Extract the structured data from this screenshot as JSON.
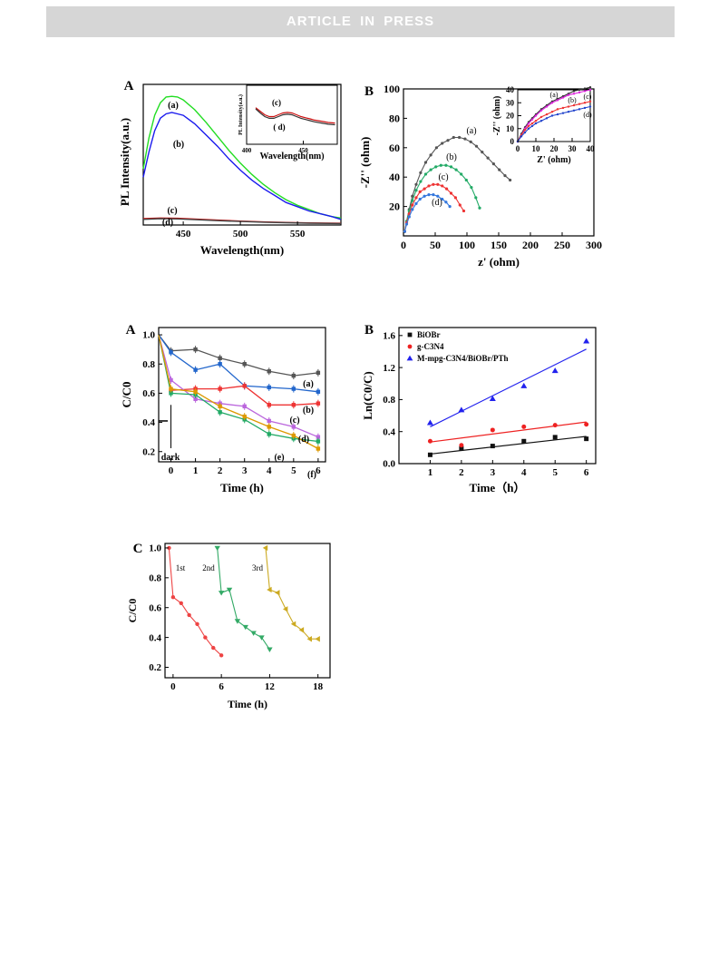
{
  "banner": {
    "text": "ARTICLE IN PRESS"
  },
  "figures": [
    {
      "id": "fig1a",
      "panel_label": "A",
      "chart_data": {
        "type": "line",
        "xlabel": "Wavelength(nm)",
        "ylabel": "PL Intensity(a.u.)",
        "xlim": [
          415,
          588
        ],
        "ylim": [
          0,
          1.0
        ],
        "xticks": [
          450,
          500,
          550
        ],
        "yticks": [],
        "series": [
          {
            "name": "(a)",
            "color": "#22dd22",
            "x": [
              415,
              420,
              425,
              430,
              435,
              440,
              445,
              450,
              460,
              470,
              480,
              490,
              500,
              510,
              520,
              530,
              540,
              550,
              560,
              570,
              580,
              588
            ],
            "y": [
              0.4,
              0.62,
              0.78,
              0.87,
              0.91,
              0.915,
              0.91,
              0.89,
              0.82,
              0.73,
              0.63,
              0.53,
              0.44,
              0.36,
              0.29,
              0.23,
              0.18,
              0.14,
              0.11,
              0.08,
              0.06,
              0.05
            ]
          },
          {
            "name": "(b)",
            "color": "#1a1aee",
            "x": [
              415,
              420,
              425,
              430,
              435,
              440,
              445,
              450,
              460,
              470,
              480,
              490,
              500,
              510,
              520,
              530,
              540,
              550,
              560,
              570,
              580,
              588
            ],
            "y": [
              0.34,
              0.52,
              0.67,
              0.76,
              0.79,
              0.8,
              0.79,
              0.78,
              0.72,
              0.64,
              0.56,
              0.47,
              0.39,
              0.32,
              0.26,
              0.21,
              0.16,
              0.13,
              0.1,
              0.08,
              0.06,
              0.04
            ]
          },
          {
            "name": "(c)",
            "color": "#cc1111",
            "x": [
              415,
              430,
              445,
              460,
              480,
              500,
              520,
              540,
              560,
              588
            ],
            "y": [
              0.045,
              0.05,
              0.048,
              0.042,
              0.035,
              0.028,
              0.022,
              0.018,
              0.015,
              0.012
            ]
          },
          {
            "name": "(d)",
            "color": "#444444",
            "x": [
              415,
              430,
              445,
              460,
              480,
              500,
              520,
              540,
              560,
              588
            ],
            "y": [
              0.04,
              0.045,
              0.043,
              0.038,
              0.031,
              0.025,
              0.02,
              0.016,
              0.013,
              0.01
            ]
          }
        ],
        "annotations": [
          "(a)",
          "(b)",
          "(c)",
          "(d)"
        ]
      },
      "inset": {
        "xlabel": "Wavelength(nm)",
        "ylabel": "PL Intensity(a.u.)",
        "xlim": [
          400,
          480
        ],
        "ylim": [
          0,
          1.0
        ],
        "xticks": [
          400,
          450
        ],
        "series": [
          {
            "name": "(c)",
            "color": "#cc1111",
            "x": [
              408,
              412,
              416,
              420,
              424,
              428,
              432,
              436,
              440,
              444,
              448,
              452,
              456,
              460,
              466,
              472,
              478
            ],
            "y": [
              0.62,
              0.56,
              0.5,
              0.47,
              0.47,
              0.5,
              0.53,
              0.54,
              0.53,
              0.5,
              0.47,
              0.45,
              0.43,
              0.41,
              0.39,
              0.37,
              0.36
            ]
          },
          {
            "name": "(d)",
            "color": "#333333",
            "x": [
              408,
              412,
              416,
              420,
              424,
              428,
              432,
              436,
              440,
              444,
              448,
              452,
              456,
              460,
              466,
              472,
              478
            ],
            "y": [
              0.6,
              0.53,
              0.47,
              0.44,
              0.44,
              0.47,
              0.5,
              0.51,
              0.5,
              0.47,
              0.44,
              0.42,
              0.4,
              0.38,
              0.36,
              0.34,
              0.33
            ]
          }
        ],
        "annotations": [
          "(c)",
          "( d)"
        ]
      }
    },
    {
      "id": "fig1b",
      "panel_label": "B",
      "chart_data": {
        "type": "scatter",
        "xlabel": "z' (ohm)",
        "ylabel": "-Z'' (ohm)",
        "xlim": [
          0,
          300
        ],
        "ylim": [
          0,
          100
        ],
        "xticks": [
          0,
          50,
          100,
          150,
          200,
          250,
          300
        ],
        "yticks": [
          20,
          40,
          60,
          80,
          100
        ],
        "series": [
          {
            "name": "(a)",
            "color": "#555555",
            "x": [
              2,
              5,
              9,
              14,
              20,
              27,
              35,
              43,
              52,
              61,
              70,
              79,
              88,
              97,
              106,
              115,
              124,
              133,
              142,
              151,
              160,
              168
            ],
            "y": [
              3,
              10,
              18,
              27,
              35,
              43,
              50,
              55,
              60,
              63,
              65,
              67,
              67,
              66,
              64,
              61,
              57,
              53,
              49,
              45,
              41,
              38
            ]
          },
          {
            "name": "(b)",
            "color": "#22aa66",
            "x": [
              2,
              5,
              9,
              14,
              20,
              27,
              35,
              43,
              51,
              59,
              67,
              75,
              83,
              91,
              99,
              107,
              114,
              120
            ],
            "y": [
              3,
              10,
              17,
              24,
              31,
              37,
              42,
              45,
              47,
              48,
              48,
              47,
              45,
              42,
              38,
              33,
              26,
              19
            ]
          },
          {
            "name": "(c)",
            "color": "#ee3333",
            "x": [
              2,
              5,
              9,
              14,
              20,
              26,
              33,
              40,
              47,
              54,
              61,
              68,
              75,
              82,
              89,
              95
            ],
            "y": [
              3,
              9,
              15,
              21,
              26,
              30,
              32,
              34,
              35,
              35,
              34,
              32,
              29,
              26,
              21,
              17
            ]
          },
          {
            "name": "(d)",
            "color": "#3377dd",
            "x": [
              2,
              5,
              9,
              14,
              20,
              26,
              33,
              40,
              47,
              54,
              61,
              67,
              73
            ],
            "y": [
              3,
              8,
              13,
              18,
              22,
              25,
              27,
              28,
              28,
              27,
              25,
              23,
              20
            ]
          }
        ],
        "annotations": [
          "(a)",
          "(b)",
          "(c)",
          "(d)"
        ]
      },
      "inset": {
        "xlabel": "Z' (ohm)",
        "ylabel": "-Z'' (ohm)",
        "xlim": [
          0,
          40
        ],
        "ylim": [
          0,
          40
        ],
        "xticks": [
          0,
          10,
          20,
          30,
          40
        ],
        "yticks": [
          0,
          10,
          20,
          30,
          40
        ],
        "series": [
          {
            "name": "(a)",
            "color": "#333333",
            "x": [
              0,
              2,
              4,
              6,
              8,
              10,
              13,
              16,
              19,
              22,
              25,
              28,
              31,
              34,
              37,
              40
            ],
            "y": [
              0,
              6,
              11,
              15,
              18,
              21,
              25,
              28,
              31,
              33,
              35,
              37,
              39,
              40,
              41,
              42
            ]
          },
          {
            "name": "(b)",
            "color": "#dd22dd",
            "x": [
              0,
              2,
              4,
              6,
              8,
              10,
              13,
              16,
              19,
              22,
              25,
              28,
              31,
              34,
              37,
              40
            ],
            "y": [
              0,
              5,
              10,
              14,
              17,
              20,
              24,
              27,
              30,
              32,
              34,
              36,
              37,
              38,
              39,
              40
            ]
          },
          {
            "name": "(c)",
            "color": "#ee3333",
            "x": [
              0,
              2,
              4,
              6,
              8,
              10,
              13,
              16,
              19,
              22,
              25,
              28,
              31,
              34,
              37,
              40
            ],
            "y": [
              0,
              5,
              9,
              12,
              14,
              16,
              19,
              21,
              23,
              25,
              26,
              27,
              28,
              29,
              30,
              31
            ]
          },
          {
            "name": "(d)",
            "color": "#2244cc",
            "x": [
              0,
              2,
              4,
              6,
              8,
              10,
              13,
              16,
              19,
              22,
              25,
              28,
              31,
              34,
              37,
              40
            ],
            "y": [
              0,
              4,
              7,
              10,
              12,
              14,
              16,
              18,
              20,
              21,
              22,
              23,
              24,
              25,
              26,
              27
            ]
          }
        ],
        "annotations": [
          "(a)",
          "(b)",
          "(c)",
          "(d)"
        ]
      }
    },
    {
      "id": "fig2a",
      "panel_label": "A",
      "chart_data": {
        "type": "line",
        "xlabel": "Time (h)",
        "ylabel": "C/C0",
        "xlim": [
          -0.5,
          6.3
        ],
        "ylim": [
          0.13,
          1.05
        ],
        "xticks": [
          0,
          1,
          2,
          3,
          4,
          5,
          6
        ],
        "yticks": [
          0.2,
          0.4,
          0.6,
          0.8,
          1.0
        ],
        "x": [
          -0.5,
          0,
          1,
          2,
          3,
          4,
          5,
          6
        ],
        "series": [
          {
            "name": "(a)",
            "color": "#555555",
            "y": [
              1.0,
              0.89,
              0.9,
              0.84,
              0.8,
              0.75,
              0.72,
              0.74
            ]
          },
          {
            "name": "(b)",
            "color": "#2266cc",
            "y": [
              1.0,
              0.88,
              0.76,
              0.8,
              0.65,
              0.64,
              0.63,
              0.61
            ]
          },
          {
            "name": "(c)",
            "color": "#ee3333",
            "y": [
              1.0,
              0.62,
              0.63,
              0.63,
              0.65,
              0.52,
              0.52,
              0.53
            ]
          },
          {
            "name": "(d)",
            "color": "#bb66dd",
            "y": [
              1.0,
              0.69,
              0.56,
              0.53,
              0.51,
              0.41,
              0.37,
              0.3
            ]
          },
          {
            "name": "(e)",
            "color": "#22aa66",
            "y": [
              1.0,
              0.6,
              0.59,
              0.47,
              0.42,
              0.32,
              0.29,
              0.27
            ]
          },
          {
            "name": "(f)",
            "color": "#dd9900",
            "y": [
              1.0,
              0.63,
              0.61,
              0.51,
              0.44,
              0.37,
              0.31,
              0.22
            ]
          }
        ],
        "annotations": [
          "dark",
          "(a)",
          "(b)",
          "(c)",
          "(d)",
          "(e)",
          "(f)"
        ]
      }
    },
    {
      "id": "fig2b",
      "panel_label": "B",
      "chart_data": {
        "type": "scatter",
        "xlabel": "Time（h）",
        "ylabel": "Ln(C0/C)",
        "xlim": [
          0,
          6.3
        ],
        "ylim": [
          0,
          1.7
        ],
        "xticks": [
          1,
          2,
          3,
          4,
          5,
          6
        ],
        "yticks": [
          0.0,
          0.4,
          0.8,
          1.2,
          1.6
        ],
        "legend_position": "top-left",
        "x": [
          1,
          2,
          3,
          4,
          5,
          6
        ],
        "series": [
          {
            "name": "BiOBr",
            "color": "#111111",
            "marker": "square",
            "y": [
              0.11,
              0.19,
              0.22,
              0.28,
              0.33,
              0.31
            ],
            "fit": [
              0.12,
              0.34
            ]
          },
          {
            "name": "g-C3N4",
            "color": "#ee2222",
            "marker": "circle",
            "y": [
              0.28,
              0.23,
              0.42,
              0.46,
              0.48,
              0.49
            ],
            "fit": [
              0.27,
              0.52
            ]
          },
          {
            "name": "M-mpg-C3N4/BiOBr/PTh",
            "color": "#2222ee",
            "marker": "triangle",
            "y": [
              0.51,
              0.67,
              0.81,
              0.97,
              1.16,
              1.53
            ],
            "fit": [
              0.46,
              1.43
            ]
          }
        ]
      }
    },
    {
      "id": "fig2c",
      "panel_label": "C",
      "chart_data": {
        "type": "line",
        "xlabel": "Time (h)",
        "ylabel": "C/C0",
        "xlim": [
          -1,
          19.5
        ],
        "ylim": [
          0.13,
          1.03
        ],
        "xticks": [
          0,
          6,
          12,
          18
        ],
        "yticks": [
          0.2,
          0.4,
          0.6,
          0.8,
          1.0
        ],
        "series": [
          {
            "name": "1st",
            "color": "#ee4444",
            "marker": "circle",
            "x": [
              -0.5,
              0,
              1,
              2,
              3,
              4,
              5,
              6
            ],
            "y": [
              1.0,
              0.67,
              0.63,
              0.55,
              0.49,
              0.4,
              0.33,
              0.28
            ]
          },
          {
            "name": "2nd",
            "color": "#33aa66",
            "marker": "triangle-down",
            "x": [
              5.5,
              6,
              7,
              8,
              9,
              10,
              11,
              12
            ],
            "y": [
              1.0,
              0.7,
              0.72,
              0.51,
              0.47,
              0.43,
              0.4,
              0.32
            ]
          },
          {
            "name": "3rd",
            "color": "#ccaa22",
            "marker": "triangle-left",
            "x": [
              11.5,
              12,
              13,
              14,
              15,
              16,
              17,
              18
            ],
            "y": [
              1.0,
              0.72,
              0.7,
              0.59,
              0.49,
              0.45,
              0.39,
              0.39
            ]
          }
        ]
      }
    }
  ]
}
